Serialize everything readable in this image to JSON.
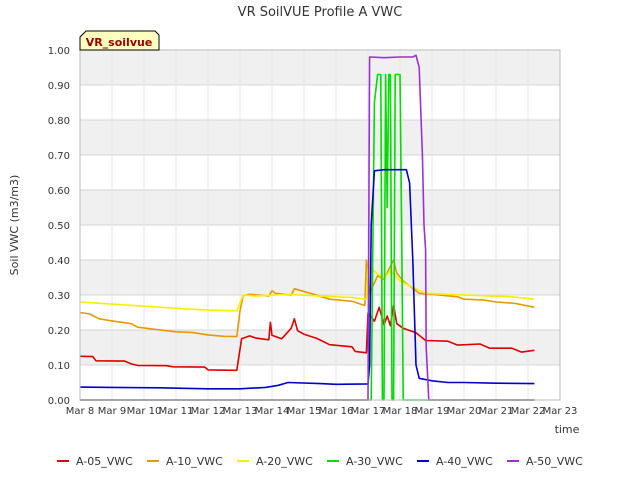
{
  "chart_data": {
    "type": "line",
    "title": "VR SoilVUE Profile A VWC",
    "xlabel": "time",
    "ylabel": "Soil VWC (m3/m3)",
    "badge": "VR_soilvue",
    "xlim": [
      8,
      23
    ],
    "ylim": [
      0,
      1
    ],
    "grid": true,
    "band_fill": "#f0f0f0",
    "legend_position": "bottom",
    "x_tick_values": [
      8,
      9,
      10,
      11,
      12,
      13,
      14,
      15,
      16,
      17,
      18,
      19,
      20,
      21,
      22,
      23
    ],
    "x_tick_labels": [
      "Mar 8",
      "Mar 9",
      "Mar 10",
      "Mar 11",
      "Mar 12",
      "Mar 13",
      "Mar 14",
      "Mar 15",
      "Mar 16",
      "Mar 17",
      "Mar 18",
      "Mar 19",
      "Mar 20",
      "Mar 21",
      "Mar 22",
      "Mar 23"
    ],
    "y_tick_values": [
      0,
      0.1,
      0.2,
      0.3,
      0.4,
      0.5,
      0.6,
      0.7,
      0.8,
      0.9,
      1.0
    ],
    "y_tick_labels": [
      "0.00",
      "0.10",
      "0.20",
      "0.30",
      "0.40",
      "0.50",
      "0.60",
      "0.70",
      "0.80",
      "0.90",
      "1.00"
    ],
    "series": [
      {
        "name": "A-05_VWC",
        "color": "#dd0000",
        "points": [
          [
            8.0,
            0.125
          ],
          [
            8.4,
            0.124
          ],
          [
            8.5,
            0.112
          ],
          [
            9.4,
            0.111
          ],
          [
            9.6,
            0.103
          ],
          [
            9.8,
            0.099
          ],
          [
            10.7,
            0.098
          ],
          [
            10.9,
            0.095
          ],
          [
            11.9,
            0.094
          ],
          [
            12.0,
            0.086
          ],
          [
            12.9,
            0.085
          ],
          [
            13.05,
            0.175
          ],
          [
            13.3,
            0.183
          ],
          [
            13.5,
            0.177
          ],
          [
            13.9,
            0.172
          ],
          [
            13.95,
            0.222
          ],
          [
            14.0,
            0.185
          ],
          [
            14.3,
            0.175
          ],
          [
            14.6,
            0.205
          ],
          [
            14.7,
            0.232
          ],
          [
            14.8,
            0.198
          ],
          [
            15.0,
            0.188
          ],
          [
            15.4,
            0.176
          ],
          [
            15.8,
            0.158
          ],
          [
            16.5,
            0.152
          ],
          [
            16.6,
            0.139
          ],
          [
            16.95,
            0.135
          ],
          [
            17.0,
            0.248
          ],
          [
            17.2,
            0.225
          ],
          [
            17.35,
            0.265
          ],
          [
            17.5,
            0.215
          ],
          [
            17.6,
            0.24
          ],
          [
            17.7,
            0.212
          ],
          [
            17.8,
            0.27
          ],
          [
            17.9,
            0.218
          ],
          [
            18.1,
            0.205
          ],
          [
            18.5,
            0.192
          ],
          [
            18.8,
            0.17
          ],
          [
            19.5,
            0.168
          ],
          [
            19.8,
            0.157
          ],
          [
            20.5,
            0.16
          ],
          [
            20.8,
            0.148
          ],
          [
            21.5,
            0.148
          ],
          [
            21.8,
            0.137
          ],
          [
            22.2,
            0.142
          ]
        ]
      },
      {
        "name": "A-10_VWC",
        "color": "#e69900",
        "points": [
          [
            8.0,
            0.25
          ],
          [
            8.3,
            0.246
          ],
          [
            8.6,
            0.232
          ],
          [
            9.0,
            0.226
          ],
          [
            9.6,
            0.218
          ],
          [
            9.8,
            0.208
          ],
          [
            10.4,
            0.201
          ],
          [
            11.0,
            0.195
          ],
          [
            11.5,
            0.193
          ],
          [
            12.0,
            0.186
          ],
          [
            12.5,
            0.182
          ],
          [
            12.9,
            0.181
          ],
          [
            13.0,
            0.255
          ],
          [
            13.1,
            0.298
          ],
          [
            13.3,
            0.302
          ],
          [
            13.9,
            0.297
          ],
          [
            14.0,
            0.312
          ],
          [
            14.1,
            0.305
          ],
          [
            14.6,
            0.3
          ],
          [
            14.7,
            0.318
          ],
          [
            15.2,
            0.305
          ],
          [
            15.8,
            0.288
          ],
          [
            16.5,
            0.282
          ],
          [
            16.9,
            0.27
          ],
          [
            16.95,
            0.4
          ],
          [
            17.05,
            0.305
          ],
          [
            17.3,
            0.355
          ],
          [
            17.5,
            0.345
          ],
          [
            17.7,
            0.382
          ],
          [
            17.8,
            0.4
          ],
          [
            17.9,
            0.362
          ],
          [
            18.1,
            0.34
          ],
          [
            18.6,
            0.305
          ],
          [
            19.2,
            0.3
          ],
          [
            19.8,
            0.295
          ],
          [
            20.0,
            0.288
          ],
          [
            20.6,
            0.286
          ],
          [
            21.0,
            0.28
          ],
          [
            21.6,
            0.276
          ],
          [
            22.2,
            0.265
          ]
        ]
      },
      {
        "name": "A-20_VWC",
        "color": "#f5f000",
        "points": [
          [
            8.0,
            0.28
          ],
          [
            9.0,
            0.274
          ],
          [
            10.0,
            0.268
          ],
          [
            11.0,
            0.262
          ],
          [
            12.0,
            0.257
          ],
          [
            12.9,
            0.255
          ],
          [
            13.1,
            0.3
          ],
          [
            13.5,
            0.297
          ],
          [
            14.5,
            0.302
          ],
          [
            15.5,
            0.297
          ],
          [
            16.5,
            0.293
          ],
          [
            16.95,
            0.288
          ],
          [
            17.0,
            0.38
          ],
          [
            17.1,
            0.375
          ],
          [
            17.3,
            0.36
          ],
          [
            17.5,
            0.348
          ],
          [
            17.7,
            0.37
          ],
          [
            17.8,
            0.36
          ],
          [
            18.0,
            0.34
          ],
          [
            18.4,
            0.322
          ],
          [
            18.8,
            0.305
          ],
          [
            19.5,
            0.302
          ],
          [
            20.5,
            0.298
          ],
          [
            21.5,
            0.295
          ],
          [
            22.2,
            0.288
          ]
        ]
      },
      {
        "name": "A-30_VWC",
        "color": "#00dd00",
        "points": [
          [
            8.0,
            0.0
          ],
          [
            17.1,
            0.0
          ],
          [
            17.2,
            0.85
          ],
          [
            17.3,
            0.93
          ],
          [
            17.4,
            0.93
          ],
          [
            17.45,
            0.0
          ],
          [
            17.5,
            0.0
          ],
          [
            17.55,
            0.93
          ],
          [
            17.6,
            0.55
          ],
          [
            17.65,
            0.93
          ],
          [
            17.7,
            0.93
          ],
          [
            17.75,
            0.0
          ],
          [
            17.8,
            0.0
          ],
          [
            17.85,
            0.93
          ],
          [
            18.0,
            0.93
          ],
          [
            18.05,
            0.5
          ],
          [
            18.1,
            0.0
          ],
          [
            22.2,
            0.0
          ]
        ]
      },
      {
        "name": "A-40_VWC",
        "color": "#0000cc",
        "points": [
          [
            8.0,
            0.037
          ],
          [
            9.0,
            0.036
          ],
          [
            10.5,
            0.035
          ],
          [
            12.0,
            0.032
          ],
          [
            13.0,
            0.032
          ],
          [
            13.8,
            0.036
          ],
          [
            14.2,
            0.042
          ],
          [
            14.5,
            0.05
          ],
          [
            15.5,
            0.047
          ],
          [
            16.0,
            0.045
          ],
          [
            17.0,
            0.046
          ],
          [
            17.05,
            0.1
          ],
          [
            17.1,
            0.5
          ],
          [
            17.2,
            0.655
          ],
          [
            17.5,
            0.658
          ],
          [
            18.2,
            0.658
          ],
          [
            18.3,
            0.62
          ],
          [
            18.4,
            0.4
          ],
          [
            18.5,
            0.1
          ],
          [
            18.6,
            0.062
          ],
          [
            19.0,
            0.055
          ],
          [
            19.5,
            0.05
          ],
          [
            20.0,
            0.05
          ],
          [
            21.0,
            0.048
          ],
          [
            22.2,
            0.047
          ]
        ]
      },
      {
        "name": "A-50_VWC",
        "color": "#9b30d9",
        "points": [
          [
            8.0,
            0.0
          ],
          [
            17.0,
            0.0
          ],
          [
            17.05,
            0.98
          ],
          [
            17.5,
            0.978
          ],
          [
            18.0,
            0.98
          ],
          [
            18.4,
            0.98
          ],
          [
            18.5,
            0.985
          ],
          [
            18.6,
            0.95
          ],
          [
            18.7,
            0.7
          ],
          [
            18.75,
            0.5
          ],
          [
            18.8,
            0.43
          ],
          [
            18.82,
            0.15
          ],
          [
            18.9,
            0.0
          ],
          [
            22.2,
            0.0
          ]
        ]
      }
    ]
  }
}
